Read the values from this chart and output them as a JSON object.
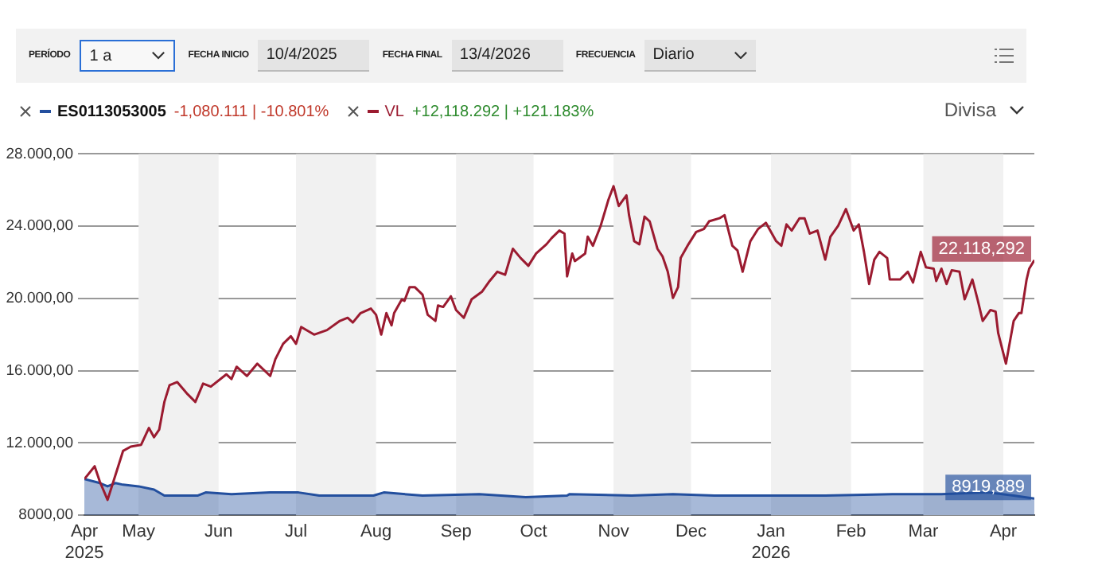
{
  "chart_data": {
    "type": "line",
    "annotations": [
      "PERÍODO",
      "1 a",
      "FECHA INICIO",
      "10/4/2025",
      "FECHA FINAL",
      "13/4/2026",
      "FRECUENCIA",
      "Diario",
      "-1,080.111 | -10.801%",
      "VL",
      "+12,118.292 | +121.183%",
      "Divisa"
    ],
    "series": [
      {
        "name": "ES0113053005",
        "type": "area",
        "color": "#234f9e",
        "x": [
          "2025-04-10",
          "2025-04-16",
          "2025-04-19",
          "2025-04-22",
          "2025-04-25",
          "2025-05-01",
          "2025-05-07",
          "2025-05-11",
          "2025-05-24",
          "2025-05-27",
          "2025-06-06",
          "2025-06-21",
          "2025-07-02",
          "2025-07-10",
          "2025-07-31",
          "2025-08-04",
          "2025-08-19",
          "2025-09-10",
          "2025-09-28",
          "2025-10-14",
          "2025-10-15",
          "2025-11-08",
          "2025-11-24",
          "2025-12-10",
          "2026-01-04",
          "2026-01-22",
          "2026-02-17",
          "2026-03-08",
          "2026-03-26",
          "2026-04-05",
          "2026-04-13"
        ],
        "values": [
          10000,
          9780,
          9600,
          9780,
          9690,
          9600,
          9420,
          9090,
          9090,
          9260,
          9170,
          9260,
          9260,
          9090,
          9090,
          9260,
          9090,
          9170,
          9000,
          9090,
          9170,
          9090,
          9170,
          9090,
          9090,
          9090,
          9170,
          9170,
          9260,
          9090,
          8919.889
        ],
        "value_labels": [
          null,
          null,
          null,
          null,
          null,
          null,
          null,
          null,
          null,
          null,
          null,
          null,
          null,
          null,
          null,
          null,
          null,
          null,
          null,
          null,
          null,
          null,
          null,
          null,
          null,
          null,
          null,
          null,
          null,
          null,
          "8919,889"
        ]
      },
      {
        "color": "#9b1b30",
        "x": [
          "2025-04-10",
          "2025-04-14",
          "2025-04-16",
          "2025-04-19",
          "2025-04-22",
          "2025-04-25",
          "2025-04-28",
          "2025-05-02",
          "2025-05-05",
          "2025-05-07",
          "2025-05-09",
          "2025-05-11",
          "2025-05-13",
          "2025-05-16",
          "2025-05-20",
          "2025-05-23",
          "2025-05-26",
          "2025-05-29",
          "2025-06-04",
          "2025-06-06",
          "2025-06-08",
          "2025-06-12",
          "2025-06-16",
          "2025-06-21",
          "2025-06-23",
          "2025-06-26",
          "2025-06-29",
          "2025-07-01",
          "2025-07-03",
          "2025-07-08",
          "2025-07-13",
          "2025-07-18",
          "2025-07-21",
          "2025-07-23",
          "2025-07-26",
          "2025-07-30",
          "2025-08-01",
          "2025-08-03",
          "2025-08-05",
          "2025-08-07",
          "2025-08-08",
          "2025-08-11",
          "2025-08-12",
          "2025-08-14",
          "2025-08-16",
          "2025-08-19",
          "2025-08-21",
          "2025-08-24",
          "2025-08-25",
          "2025-08-27",
          "2025-08-30",
          "2025-09-01",
          "2025-09-04",
          "2025-09-07",
          "2025-09-11",
          "2025-09-14",
          "2025-09-17",
          "2025-09-20",
          "2025-09-23",
          "2025-09-26",
          "2025-09-29",
          "2025-10-02",
          "2025-10-06",
          "2025-10-08",
          "2025-10-11",
          "2025-10-13",
          "2025-10-14",
          "2025-10-16",
          "2025-10-17",
          "2025-10-21",
          "2025-10-22",
          "2025-10-24",
          "2025-10-27",
          "2025-10-30",
          "2025-11-01",
          "2025-11-03",
          "2025-11-06",
          "2025-11-07",
          "2025-11-09",
          "2025-11-11",
          "2025-11-13",
          "2025-11-15",
          "2025-11-18",
          "2025-11-20",
          "2025-11-22",
          "2025-11-24",
          "2025-11-26",
          "2025-11-27",
          "2025-11-30",
          "2025-12-03",
          "2025-12-06",
          "2025-12-08",
          "2025-12-12",
          "2025-12-14",
          "2025-12-17",
          "2025-12-19",
          "2025-12-21",
          "2025-12-24",
          "2025-12-27",
          "2025-12-30",
          "2026-01-03",
          "2026-01-05",
          "2026-01-07",
          "2026-01-09",
          "2026-01-12",
          "2026-01-14",
          "2026-01-16",
          "2026-01-19",
          "2026-01-22",
          "2026-01-24",
          "2026-01-27",
          "2026-01-30",
          "2026-02-02",
          "2026-02-04",
          "2026-02-06",
          "2026-02-08",
          "2026-02-10",
          "2026-02-12",
          "2026-02-15",
          "2026-02-16",
          "2026-02-20",
          "2026-02-23",
          "2026-02-25",
          "2026-02-28",
          "2026-03-02",
          "2026-03-05",
          "2026-03-06",
          "2026-03-08",
          "2026-03-10",
          "2026-03-12",
          "2026-03-15",
          "2026-03-17",
          "2026-03-20",
          "2026-03-22",
          "2026-03-24",
          "2026-03-27",
          "2026-03-29",
          "2026-03-30",
          "2026-04-02",
          "2026-04-05",
          "2026-04-07",
          "2026-04-08",
          "2026-04-10",
          "2026-04-11",
          "2026-04-13"
        ],
        "values": [
          10000,
          10710,
          9860,
          8850,
          10200,
          11560,
          11800,
          11900,
          12830,
          12320,
          12740,
          14270,
          15200,
          15370,
          14700,
          14270,
          15290,
          15120,
          15800,
          15540,
          16220,
          15710,
          16390,
          15710,
          16640,
          17490,
          17910,
          17490,
          18420,
          18000,
          18250,
          18760,
          18930,
          18670,
          19190,
          19440,
          19100,
          18000,
          19190,
          18510,
          19190,
          19950,
          19870,
          20630,
          20630,
          20210,
          19100,
          18760,
          19610,
          19530,
          20120,
          19360,
          18930,
          19950,
          20370,
          20970,
          21480,
          21310,
          22750,
          22240,
          21810,
          22490,
          23000,
          23340,
          23760,
          23590,
          21220,
          22490,
          22070,
          22490,
          23420,
          22920,
          24020,
          25460,
          26220,
          25120,
          25710,
          24610,
          23170,
          23000,
          24530,
          24270,
          22750,
          22320,
          21480,
          20030,
          20630,
          22240,
          23000,
          23680,
          23850,
          24270,
          24440,
          24610,
          22920,
          22660,
          21480,
          23170,
          23850,
          24190,
          23170,
          22920,
          24100,
          23760,
          24440,
          24440,
          23590,
          23760,
          22150,
          23420,
          24020,
          24950,
          23760,
          24100,
          22580,
          20800,
          22150,
          22580,
          22240,
          21050,
          21050,
          21480,
          20880,
          22580,
          21730,
          21650,
          20970,
          21650,
          20800,
          21560,
          21480,
          19950,
          21050,
          19950,
          18760,
          19360,
          19270,
          18080,
          16390,
          18760,
          19190,
          19190,
          21050,
          21650,
          22118.292
        ],
        "value_labels": [
          null,
          null,
          null,
          null,
          null,
          null,
          null,
          null,
          null,
          null,
          null,
          null,
          null,
          null,
          null,
          null,
          null,
          null,
          null,
          null,
          null,
          null,
          null,
          null,
          null,
          null,
          null,
          null,
          null,
          null,
          null,
          null,
          null,
          null,
          null,
          null,
          null,
          null,
          null,
          null,
          null,
          null,
          null,
          null,
          null,
          null,
          null,
          null,
          null,
          null,
          null,
          null,
          null,
          null,
          null,
          null,
          null,
          null,
          null,
          null,
          null,
          null,
          null,
          null,
          null,
          null,
          null,
          null,
          null,
          null,
          null,
          null,
          null,
          null,
          null,
          null,
          null,
          null,
          null,
          null,
          null,
          null,
          null,
          null,
          null,
          null,
          null,
          null,
          null,
          null,
          null,
          null,
          null,
          null,
          null,
          null,
          null,
          null,
          null,
          null,
          null,
          null,
          null,
          null,
          null,
          null,
          null,
          null,
          null,
          null,
          null,
          null,
          null,
          null,
          null,
          null,
          null,
          null,
          null,
          null,
          null,
          null,
          null,
          null,
          null,
          null,
          null,
          null,
          null,
          null,
          null,
          null,
          null,
          null,
          null,
          null,
          null,
          null,
          null,
          null,
          null,
          null,
          null,
          null,
          "22.118,292"
        ]
      }
    ],
    "xlim": [
      "2025-04-10",
      "2026-04-13"
    ],
    "xticks": [
      {
        "value": "2025-04-10",
        "label": "Apr\n2025"
      },
      {
        "value": "2025-05-01",
        "label": "May"
      },
      {
        "value": "2025-06-01",
        "label": "Jun"
      },
      {
        "value": "2025-07-01",
        "label": "Jul"
      },
      {
        "value": "2025-08-01",
        "label": "Aug"
      },
      {
        "value": "2025-09-01",
        "label": "Sep"
      },
      {
        "value": "2025-10-01",
        "label": "Oct"
      },
      {
        "value": "2025-11-01",
        "label": "Nov"
      },
      {
        "value": "2025-12-01",
        "label": "Dec"
      },
      {
        "value": "2026-01-01",
        "label": "Jan\n2026"
      },
      {
        "value": "2026-02-01",
        "label": "Feb"
      },
      {
        "value": "2026-03-01",
        "label": "Mar"
      },
      {
        "value": "2026-04-01",
        "label": "Apr"
      }
    ],
    "ylim": [
      8000,
      28000
    ],
    "yticks": [
      {
        "value": 8000,
        "label": "8000,00"
      },
      {
        "value": 12000,
        "label": "12.000,00"
      },
      {
        "value": 16000,
        "label": "16.000,00"
      },
      {
        "value": 20000,
        "label": "20.000,00"
      },
      {
        "value": 24000,
        "label": "24.000,00"
      },
      {
        "value": 28000,
        "label": "28.000,00"
      }
    ],
    "bands": [
      {
        "axis": "x",
        "from": "2025-05-01",
        "to": "2025-06-01",
        "color": "#f1f1f1"
      },
      {
        "axis": "x",
        "from": "2025-07-01",
        "to": "2025-08-01",
        "color": "#f1f1f1"
      },
      {
        "axis": "x",
        "from": "2025-09-01",
        "to": "2025-10-01",
        "color": "#f1f1f1"
      },
      {
        "axis": "x",
        "from": "2025-11-01",
        "to": "2025-12-01",
        "color": "#f1f1f1"
      },
      {
        "axis": "x",
        "from": "2026-01-01",
        "to": "2026-02-01",
        "color": "#f1f1f1"
      },
      {
        "axis": "x",
        "from": "2026-03-01",
        "to": "2026-04-01",
        "color": "#f1f1f1"
      }
    ],
    "grid": "y",
    "legend": "top left"
  }
}
